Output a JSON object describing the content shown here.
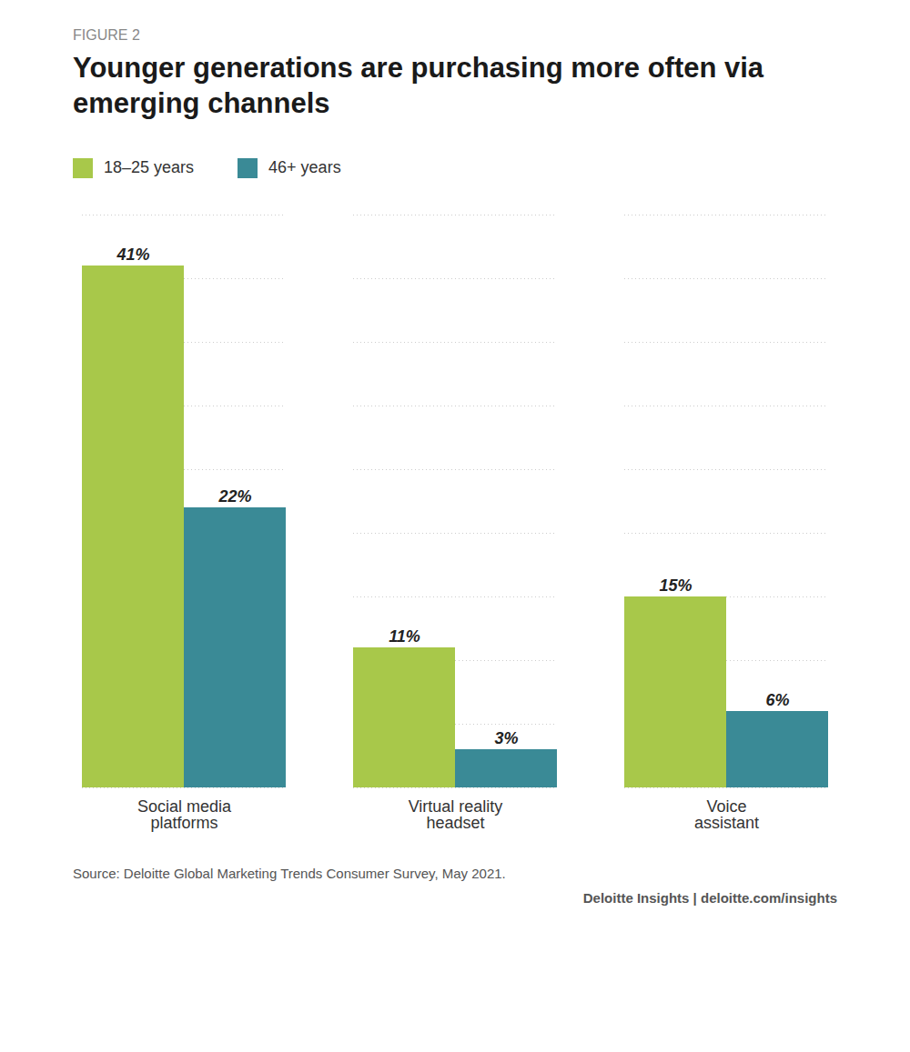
{
  "chart_data": {
    "type": "bar",
    "subtitle": "FIGURE 2",
    "title": "Younger generations are purchasing more often via\nemerging channels",
    "categories": [
      "Social media\nplatforms",
      "Virtual reality\nheadset",
      "Voice\nassistant"
    ],
    "series": [
      {
        "name": "18–25 years",
        "color": "#a8c84a",
        "values": [
          41,
          11,
          15
        ],
        "value_labels": [
          "41%",
          "11%",
          "15%"
        ]
      },
      {
        "name": "46+ years",
        "color": "#3a8a96",
        "values": [
          22,
          3,
          6
        ],
        "value_labels": [
          "22%",
          "3%",
          "6%"
        ]
      }
    ],
    "ylim": [
      0,
      45
    ],
    "yticks": [
      0,
      5,
      10,
      15,
      20,
      25,
      30,
      35,
      40,
      45
    ],
    "grid": true,
    "legend": "top",
    "data_labels": true,
    "tick_labels": "x",
    "annotations": [
      "Source: Deloitte Global Marketing Trends Consumer Survey, May 2021.",
      "Deloitte Insights | deloitte.com/insights"
    ]
  }
}
